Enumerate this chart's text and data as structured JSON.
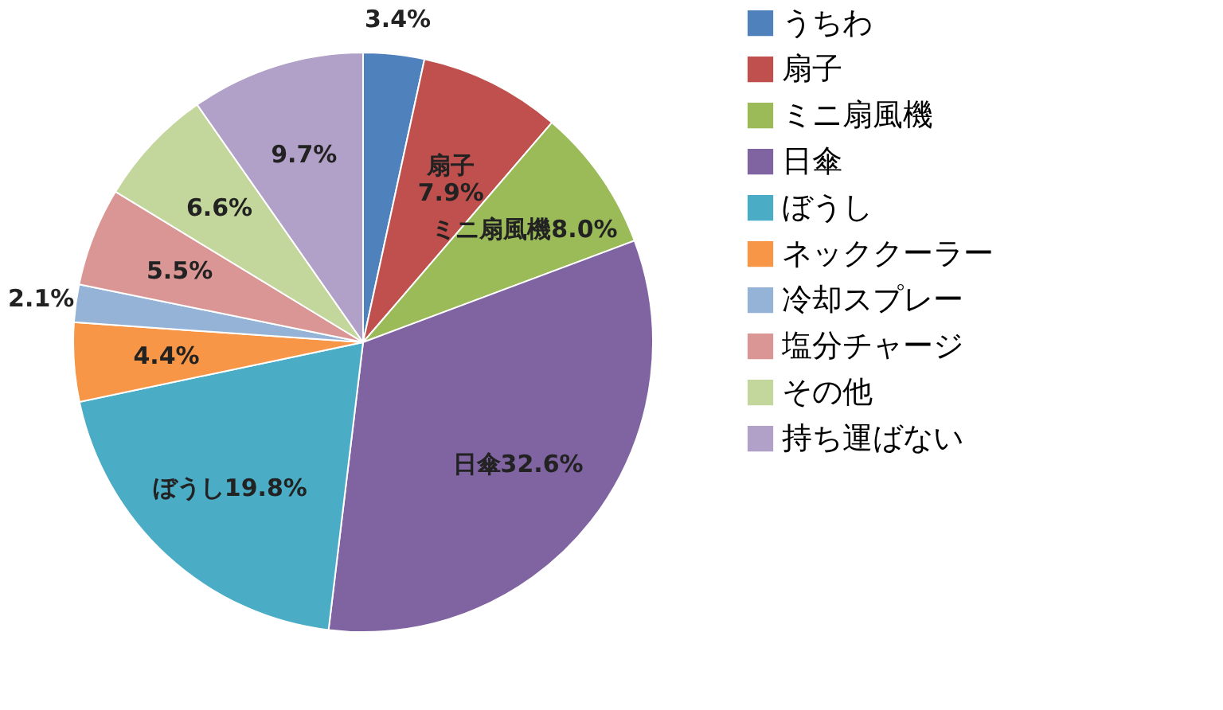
{
  "chart_data": {
    "type": "pie",
    "categories": [
      "うちわ",
      "扇子",
      "ミニ扇風機",
      "日傘",
      "ぼうし",
      "ネッククーラー",
      "冷却スプレー",
      "塩分チャージ",
      "その他",
      "持ち運ばない"
    ],
    "values": [
      3.4,
      7.9,
      8.0,
      32.6,
      19.8,
      4.4,
      2.1,
      5.5,
      6.6,
      9.7
    ],
    "colors": [
      "#4f81bd",
      "#c0504d",
      "#9bbb59",
      "#8064a2",
      "#4bacc6",
      "#f79646",
      "#95b3d7",
      "#da9694",
      "#c3d69b",
      "#b1a0c7"
    ],
    "value_labels": [
      "3.4%",
      "扇子\n7.9%",
      "ミニ扇風機8.0%",
      "日傘32.6%",
      "ぼうし19.8%",
      "4.4%",
      "2.1%",
      "5.5%",
      "6.6%",
      "9.7%"
    ],
    "legend": "right"
  }
}
